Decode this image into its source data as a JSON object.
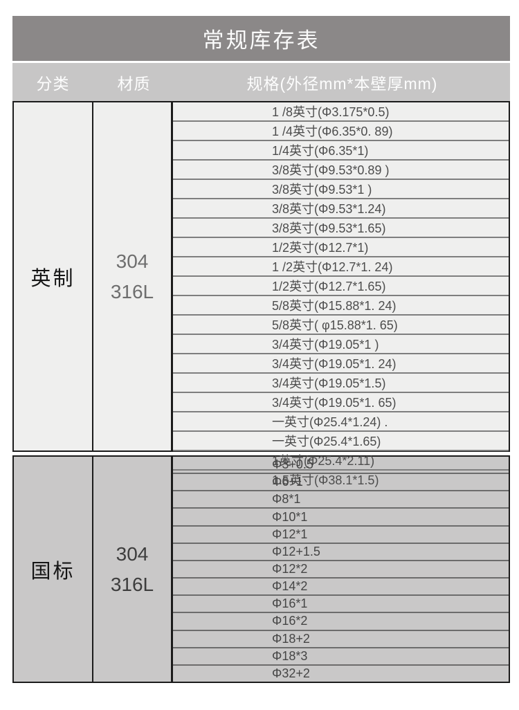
{
  "title": "常规库存表",
  "columns": {
    "category": "分类",
    "material": "材质",
    "spec": "规格(外径mm*本壁厚mm)"
  },
  "sections": [
    {
      "category": "英制",
      "material_line1": "304",
      "material_line2": "316L",
      "specs": [
        "1 /8英寸(Φ3.175*0.5)",
        "1 /4英寸(Φ6.35*0. 89)",
        "1/4英寸(Φ6.35*1)",
        "3/8英寸(Φ9.53*0.89 )",
        "3/8英寸(Φ9.53*1 )",
        "3/8英寸(Φ9.53*1.24)",
        "3/8英寸(Φ9.53*1.65)",
        "1/2英寸(Φ12.7*1)",
        "1 /2英寸(Φ12.7*1. 24)",
        "1/2英寸(Φ12.7*1.65)",
        "5/8英寸(Φ15.88*1. 24)",
        "5/8英寸( φ15.88*1. 65)",
        "3/4英寸(Φ19.05*1 )",
        "3/4英寸(Φ19.05*1. 24)",
        "3/4英寸(Φ19.05*1.5)",
        "3/4英寸(Φ19.05*1. 65)",
        "一英寸(Φ25.4*1.24) .",
        "一英寸(Φ25.4*1.65)",
        "1英寸(Φ25.4*2.11)",
        "1.5英寸(Φ38.1*1.5)"
      ]
    },
    {
      "category": "国标",
      "material_line1": "304",
      "material_line2": "316L",
      "specs": [
        "Φ3+0.5",
        "Φ6+1",
        "Φ8*1",
        "Φ10*1",
        "Φ12*1",
        "Φ12+1.5",
        "Φ12*2",
        "Φ14*2",
        "Φ16*1",
        "Φ16*2",
        "Φ18+2",
        "Φ18*3",
        "Φ32+2"
      ]
    }
  ],
  "colors": {
    "page_bg": "#ffffff",
    "title_bg": "#8b8888",
    "title_text": "#fbfbfb",
    "header_bg": "#c7c6c6",
    "header_text": "#fdfdfd",
    "imperial_bg": "#efefee",
    "imperial_divider": "#7e7e7e",
    "imperial_text": "#4d4d4d",
    "material_text_imperial": "#6e6e6e",
    "gb_bg": "#c9c8c8",
    "gb_divider": "#6c6c6c",
    "gb_text": "#454545",
    "material_text_gb": "#3d3d3d",
    "border": "#1b1b1b"
  }
}
